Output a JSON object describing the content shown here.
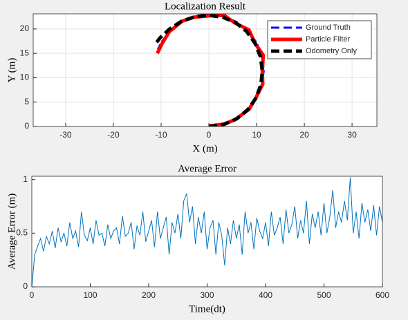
{
  "chart_data": [
    {
      "type": "line",
      "title": "Localization Result",
      "xlabel": "X (m)",
      "ylabel": "Y (m)",
      "xlim": [
        -36.8,
        35.2
      ],
      "xticks": [
        -30,
        -20,
        -10,
        0,
        10,
        20,
        30
      ],
      "ylim": [
        0,
        23.1
      ],
      "yticks": [
        0,
        5,
        10,
        15,
        20
      ],
      "grid": true,
      "legend": "upper right",
      "series": [
        {
          "name": "Ground Truth",
          "color": "#0000ff",
          "style": "dashed",
          "x": [
            0,
            2.98,
            5.75,
            8.13,
            9.96,
            11.11,
            11.5,
            11.11,
            9.96,
            8.13,
            5.75,
            2.98,
            0,
            -2.98,
            -5.75,
            -8.13,
            -9.96,
            -10.66
          ],
          "values": [
            0,
            0.39,
            1.54,
            3.37,
            5.75,
            8.52,
            11.5,
            14.48,
            17.25,
            19.63,
            21.46,
            22.61,
            23.0,
            22.61,
            21.46,
            19.63,
            17.25,
            15.81
          ]
        },
        {
          "name": "Particle Filter",
          "color": "#ff0000",
          "style": "solid",
          "x": [
            0,
            3.2,
            5.5,
            8.4,
            9.7,
            11.3,
            11.2,
            11.4,
            9.7,
            8.4,
            5.5,
            3.2,
            0.2,
            -3.1,
            -5.6,
            -8.3,
            -9.8,
            -10.8
          ],
          "values": [
            0.1,
            0.5,
            1.4,
            3.5,
            5.6,
            8.7,
            11.3,
            14.6,
            17.0,
            19.8,
            21.2,
            22.8,
            22.7,
            22.4,
            21.6,
            19.4,
            17.0,
            15.0
          ]
        },
        {
          "name": "Odometry Only",
          "color": "#000000",
          "style": "dashed",
          "x": [
            0,
            3.1,
            5.9,
            8.2,
            9.9,
            10.9,
            11.2,
            10.8,
            9.7,
            7.9,
            5.6,
            2.9,
            0,
            -2.9,
            -5.7,
            -8.2,
            -10.2,
            -11.3
          ],
          "values": [
            0,
            0.4,
            1.6,
            3.5,
            5.9,
            8.6,
            11.4,
            14.3,
            17.0,
            19.5,
            21.3,
            22.4,
            22.8,
            22.5,
            21.6,
            20.0,
            18.2,
            16.8
          ]
        }
      ]
    },
    {
      "type": "line",
      "title": "Average Error",
      "xlabel": "Time(dt)",
      "ylabel": "Average Error (m)",
      "xlim": [
        0,
        600
      ],
      "xticks": [
        0,
        100,
        200,
        300,
        400,
        500,
        600
      ],
      "ylim": [
        0,
        1.03
      ],
      "yticks": [
        0,
        0.5,
        1
      ],
      "grid": false,
      "series": [
        {
          "color": "#0072bd",
          "style": "solid",
          "x": [
            0,
            5,
            10,
            15,
            20,
            25,
            30,
            35,
            40,
            45,
            50,
            55,
            60,
            65,
            70,
            75,
            80,
            85,
            90,
            95,
            100,
            105,
            110,
            115,
            120,
            125,
            130,
            135,
            140,
            145,
            150,
            155,
            160,
            165,
            170,
            175,
            180,
            185,
            190,
            195,
            200,
            205,
            210,
            215,
            220,
            225,
            230,
            235,
            240,
            245,
            250,
            255,
            260,
            265,
            270,
            275,
            280,
            285,
            290,
            295,
            300,
            305,
            310,
            315,
            320,
            325,
            330,
            335,
            340,
            345,
            350,
            355,
            360,
            365,
            370,
            375,
            380,
            385,
            390,
            395,
            400,
            405,
            410,
            415,
            420,
            425,
            430,
            435,
            440,
            445,
            450,
            455,
            460,
            465,
            470,
            475,
            480,
            485,
            490,
            495,
            500,
            505,
            510,
            515,
            520,
            525,
            530,
            535,
            540,
            545,
            550,
            555,
            560,
            565,
            570,
            575,
            580,
            585,
            590,
            595,
            600
          ],
          "values": [
            0,
            0.3,
            0.38,
            0.45,
            0.33,
            0.47,
            0.4,
            0.52,
            0.36,
            0.55,
            0.42,
            0.5,
            0.38,
            0.6,
            0.45,
            0.52,
            0.37,
            0.7,
            0.48,
            0.43,
            0.55,
            0.4,
            0.62,
            0.48,
            0.5,
            0.38,
            0.58,
            0.45,
            0.52,
            0.55,
            0.4,
            0.66,
            0.47,
            0.5,
            0.6,
            0.35,
            0.57,
            0.48,
            0.7,
            0.42,
            0.52,
            0.62,
            0.37,
            0.7,
            0.45,
            0.55,
            0.65,
            0.3,
            0.6,
            0.5,
            0.68,
            0.45,
            0.8,
            0.87,
            0.6,
            0.75,
            0.4,
            0.65,
            0.5,
            0.7,
            0.35,
            0.55,
            0.62,
            0.3,
            0.6,
            0.48,
            0.2,
            0.55,
            0.4,
            0.62,
            0.45,
            0.58,
            0.3,
            0.7,
            0.5,
            0.6,
            0.35,
            0.64,
            0.52,
            0.45,
            0.6,
            0.38,
            0.7,
            0.48,
            0.55,
            0.65,
            0.4,
            0.72,
            0.5,
            0.58,
            0.75,
            0.45,
            0.62,
            0.5,
            0.8,
            0.4,
            0.68,
            0.55,
            0.7,
            0.48,
            0.78,
            0.5,
            0.65,
            0.9,
            0.55,
            0.7,
            0.6,
            0.8,
            0.62,
            1.02,
            0.5,
            0.7,
            0.45,
            0.78,
            0.6,
            0.72,
            0.52,
            0.76,
            0.48,
            0.75,
            0.6
          ]
        }
      ]
    }
  ]
}
